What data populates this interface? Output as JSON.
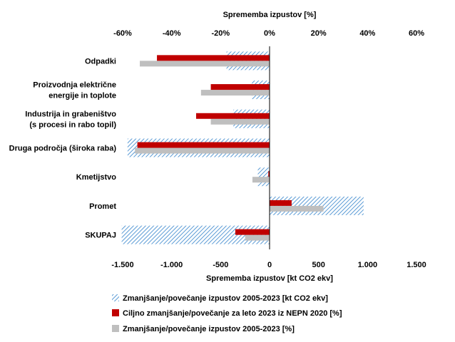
{
  "chart_data": {
    "type": "bar",
    "orientation": "horizontal",
    "categories": [
      "Odpadki",
      "Proizvodnja električne energije in toplote",
      "Industrija in grabeništvo (s procesi in rabo topil)",
      "Druga področja (široka raba)",
      "Kmetijstvo",
      "Promet",
      "SKUPAJ"
    ],
    "category_label_lines": [
      [
        "Odpadki"
      ],
      [
        "Proizvodnja električne",
        "energije in toplote"
      ],
      [
        "Industrija in grabeništvo",
        "(s procesi in rabo topil)"
      ],
      [
        "Druga področja (široka raba)"
      ],
      [
        "Kmetijstvo"
      ],
      [
        "Promet"
      ],
      [
        "SKUPAJ"
      ]
    ],
    "series": [
      {
        "name": "Zmanjšanje/povečanje izpustov 2005-2023 [kt CO2 ekv]",
        "axis": "bottom",
        "style": "hatched",
        "color": "#5b9bd5",
        "values": [
          -440,
          -180,
          -370,
          -1450,
          -120,
          960,
          -1510
        ]
      },
      {
        "name": "Ciljno zmanjšanje/povečanje za leto 2023 iz NEPN 2020 [%]",
        "axis": "top",
        "style": "solid",
        "color": "#c00000",
        "values": [
          -46,
          -24,
          -30,
          -54,
          -0.5,
          9,
          -14
        ]
      },
      {
        "name": "Zmanjšanje/povečanje izpustov 2005-2023 [%]",
        "axis": "top",
        "style": "solid",
        "color": "#bfbfbf",
        "values": [
          -53,
          -28,
          -24,
          -55,
          -7,
          22,
          -10
        ]
      }
    ],
    "top_axis": {
      "title": "Sprememba izpustov [%]",
      "range": [
        -60,
        60
      ],
      "ticks": [
        "-60%",
        "-40%",
        "-20%",
        "0%",
        "20%",
        "40%",
        "60%"
      ]
    },
    "bottom_axis": {
      "title": "Sprememba izpustov [kt CO2 ekv]",
      "range": [
        -1500,
        1500
      ],
      "ticks": [
        "-1.500",
        "-1.000",
        "-500",
        "0",
        "500",
        "1.000",
        "1.500"
      ]
    },
    "legend_position": "bottom"
  }
}
